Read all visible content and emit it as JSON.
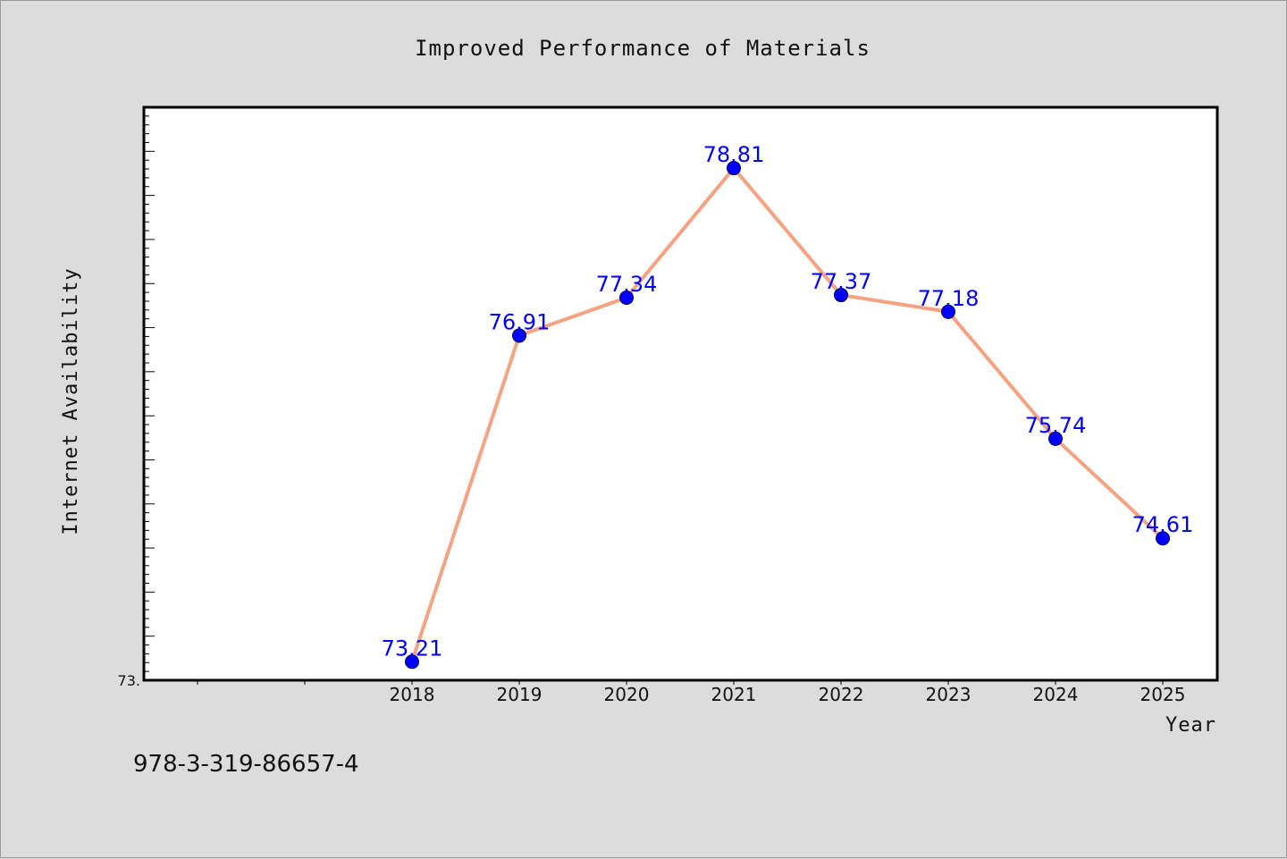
{
  "chart_data": {
    "type": "line",
    "title": "Improved Performance of Materials",
    "xlabel": "Year",
    "ylabel": "Internet Availability",
    "categories": [
      "2018",
      "2019",
      "2020",
      "2021",
      "2022",
      "2023",
      "2024",
      "2025"
    ],
    "series": [
      {
        "values": [
          73.21,
          76.91,
          77.34,
          78.81,
          77.37,
          77.18,
          75.74,
          74.61
        ]
      }
    ],
    "data_labels": [
      "73.21",
      "76.91",
      "77.34",
      "78.81",
      "77.37",
      "77.18",
      "75.74",
      "74.61"
    ],
    "yticklabels": [
      "73."
    ],
    "ylim": [
      73.0,
      79.5
    ],
    "grid": false,
    "line_color": "#f4a27f",
    "marker_color": "#0000ff",
    "label_color": "#0000ff"
  },
  "footer": {
    "isbn": "978-3-319-86657-4"
  }
}
